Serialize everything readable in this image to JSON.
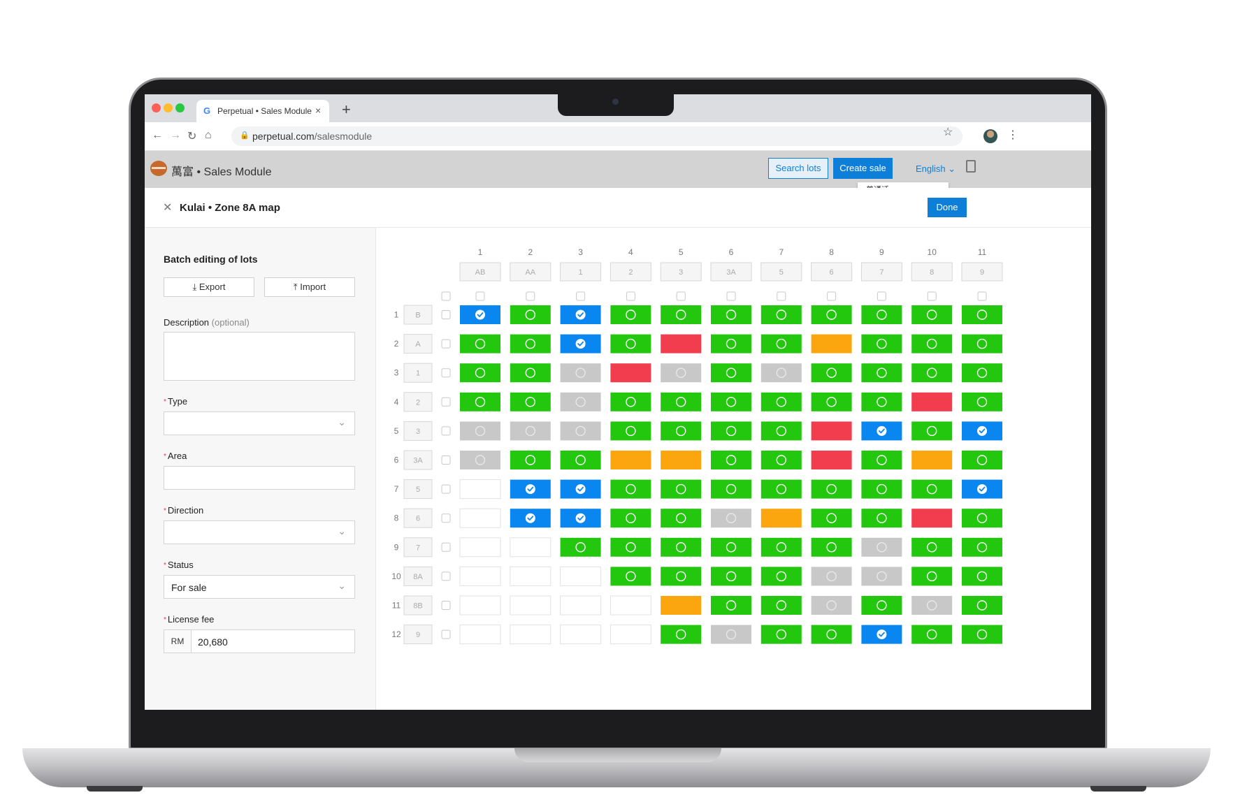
{
  "browser": {
    "tab_title": "Perpetual • Sales Module",
    "tab_favicon": "G",
    "tab_close": "×",
    "new_tab": "+",
    "url_host": "perpetual.com",
    "url_path": "/salesmodule"
  },
  "app": {
    "brand_chinese": "萬富",
    "brand_suffix": "• Sales Module",
    "search_lots": "Search lots",
    "create_sale": "Create sale",
    "language": "English",
    "language_menu_item": "普通话",
    "accent_color": "#0d7fd9"
  },
  "modal": {
    "close": "✕",
    "title": "Kulai • Zone 8A map",
    "done": "Done"
  },
  "batch": {
    "title": "Batch editing of lots",
    "export": "Export",
    "import": "Import",
    "description_label": "Description",
    "description_optional": "(optional)",
    "description_value": "",
    "type_label": "Type",
    "type_value": "",
    "area_label": "Area",
    "area_value": "",
    "direction_label": "Direction",
    "direction_value": "",
    "status_label": "Status",
    "status_value": "For sale",
    "license_fee_label": "License fee",
    "license_currency": "RM",
    "license_fee_value": "20,680"
  },
  "lot_map": {
    "status_colors": {
      "available": "#22c70e",
      "selected": "#0a86f0",
      "sold": "#f23d4f",
      "reserved": "#fba60f",
      "unavailable": "#c8c8c8",
      "empty": "#ffffff"
    },
    "columns": [
      {
        "index": "1",
        "code": "AB"
      },
      {
        "index": "2",
        "code": "AA"
      },
      {
        "index": "3",
        "code": "1"
      },
      {
        "index": "4",
        "code": "2"
      },
      {
        "index": "5",
        "code": "3"
      },
      {
        "index": "6",
        "code": "3A"
      },
      {
        "index": "7",
        "code": "5"
      },
      {
        "index": "8",
        "code": "6"
      },
      {
        "index": "9",
        "code": "7"
      },
      {
        "index": "10",
        "code": "8"
      },
      {
        "index": "11",
        "code": "9"
      }
    ],
    "rows": [
      {
        "index": "1",
        "code": "B",
        "cells": [
          "S",
          "G",
          "S",
          "G",
          "G",
          "G",
          "G",
          "G",
          "G",
          "G",
          "G"
        ]
      },
      {
        "index": "2",
        "code": "A",
        "cells": [
          "G",
          "G",
          "S",
          "G",
          "R",
          "G",
          "G",
          "O",
          "G",
          "G",
          "G"
        ]
      },
      {
        "index": "3",
        "code": "1",
        "cells": [
          "G",
          "G",
          "X",
          "R",
          "X",
          "G",
          "X",
          "G",
          "G",
          "G",
          "G"
        ]
      },
      {
        "index": "4",
        "code": "2",
        "cells": [
          "G",
          "G",
          "X",
          "G",
          "G",
          "G",
          "G",
          "G",
          "G",
          "R",
          "G"
        ]
      },
      {
        "index": "5",
        "code": "3",
        "cells": [
          "X",
          "X",
          "X",
          "G",
          "G",
          "G",
          "G",
          "R",
          "S",
          "G",
          "S"
        ]
      },
      {
        "index": "6",
        "code": "3A",
        "cells": [
          "X",
          "G",
          "G",
          "O",
          "O",
          "G",
          "G",
          "R",
          "G",
          "O",
          "G"
        ]
      },
      {
        "index": "7",
        "code": "5",
        "cells": [
          "E",
          "S",
          "S",
          "G",
          "G",
          "G",
          "G",
          "G",
          "G",
          "G",
          "S"
        ]
      },
      {
        "index": "8",
        "code": "6",
        "cells": [
          "E",
          "S",
          "S",
          "G",
          "G",
          "X",
          "O",
          "G",
          "G",
          "R",
          "G"
        ]
      },
      {
        "index": "9",
        "code": "7",
        "cells": [
          "E",
          "E",
          "G",
          "G",
          "G",
          "G",
          "G",
          "G",
          "X",
          "G",
          "G"
        ]
      },
      {
        "index": "10",
        "code": "8A",
        "cells": [
          "E",
          "E",
          "E",
          "G",
          "G",
          "G",
          "G",
          "X",
          "X",
          "G",
          "G"
        ]
      },
      {
        "index": "11",
        "code": "8B",
        "cells": [
          "E",
          "E",
          "E",
          "E",
          "O",
          "G",
          "G",
          "X",
          "G",
          "X",
          "G"
        ]
      },
      {
        "index": "12",
        "code": "9",
        "cells": [
          "E",
          "E",
          "E",
          "E",
          "G",
          "X",
          "G",
          "G",
          "S",
          "G",
          "G"
        ]
      }
    ]
  }
}
